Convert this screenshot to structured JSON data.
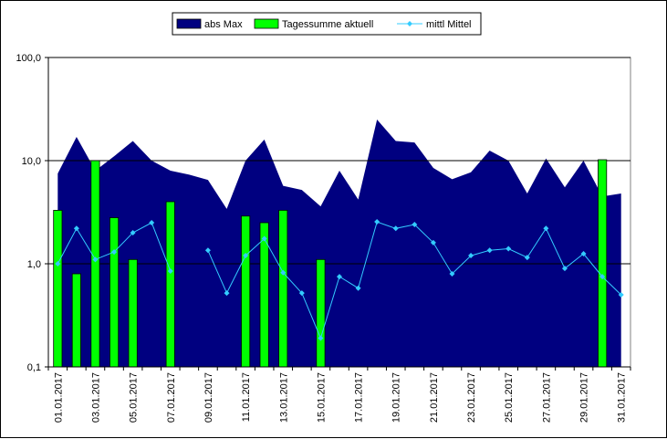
{
  "chart_data": {
    "type": "bar",
    "title": "",
    "xlabel": "",
    "ylabel": "",
    "y_scale": "log",
    "ylim": [
      0.1,
      100
    ],
    "y_ticks": [
      {
        "value": 0.1,
        "label": "0,1"
      },
      {
        "value": 1,
        "label": "1,0"
      },
      {
        "value": 10,
        "label": "10,0"
      },
      {
        "value": 100,
        "label": "100,0"
      }
    ],
    "gridlines": "horizontal at 1, 10, 100",
    "legend_position": "top-center",
    "x_tick_labels": [
      "01.01.2017",
      "03.01.2017",
      "05.01.2017",
      "07.01.2017",
      "09.01.2017",
      "11.01.2017",
      "13.01.2017",
      "15.01.2017",
      "17.01.2017",
      "19.01.2017",
      "21.01.2017",
      "23.01.2017",
      "25.01.2017",
      "27.01.2017",
      "29.01.2017",
      "31.01.2017"
    ],
    "days": [
      "01.01.2017",
      "02.01.2017",
      "03.01.2017",
      "04.01.2017",
      "05.01.2017",
      "06.01.2017",
      "07.01.2017",
      "08.01.2017",
      "09.01.2017",
      "10.01.2017",
      "11.01.2017",
      "12.01.2017",
      "13.01.2017",
      "14.01.2017",
      "15.01.2017",
      "16.01.2017",
      "17.01.2017",
      "18.01.2017",
      "19.01.2017",
      "20.01.2017",
      "21.01.2017",
      "22.01.2017",
      "23.01.2017",
      "24.01.2017",
      "25.01.2017",
      "26.01.2017",
      "27.01.2017",
      "28.01.2017",
      "29.01.2017",
      "30.01.2017",
      "31.01.2017"
    ],
    "series": [
      {
        "name": "abs Max",
        "type": "area",
        "color": "#000080",
        "values": [
          7.5,
          17,
          8,
          11,
          15.5,
          10,
          8,
          7.3,
          6.5,
          3.4,
          10,
          16,
          5.7,
          5.2,
          3.6,
          8,
          4.2,
          25,
          15.5,
          15,
          8.5,
          6.6,
          7.7,
          12.5,
          10,
          4.8,
          10.5,
          5.5,
          10,
          4.5,
          4.8
        ]
      },
      {
        "name": "Tagessumme aktuell",
        "type": "bar",
        "color": "#00ff00",
        "values": [
          3.3,
          0.8,
          10,
          2.8,
          1.1,
          null,
          4,
          null,
          null,
          null,
          2.9,
          2.5,
          3.3,
          null,
          1.1,
          null,
          null,
          null,
          null,
          null,
          null,
          null,
          null,
          null,
          null,
          null,
          null,
          null,
          null,
          10.2,
          null
        ]
      },
      {
        "name": "mittl Mittel",
        "type": "line",
        "color": "#33ccff",
        "values": [
          1.0,
          2.2,
          1.1,
          1.3,
          2.0,
          2.5,
          0.85,
          null,
          1.35,
          0.52,
          1.2,
          1.75,
          0.82,
          0.52,
          0.19,
          0.75,
          0.58,
          2.55,
          2.2,
          2.4,
          1.6,
          0.8,
          1.2,
          1.35,
          1.4,
          1.15,
          2.2,
          0.9,
          1.25,
          0.75,
          0.5
        ]
      }
    ]
  }
}
